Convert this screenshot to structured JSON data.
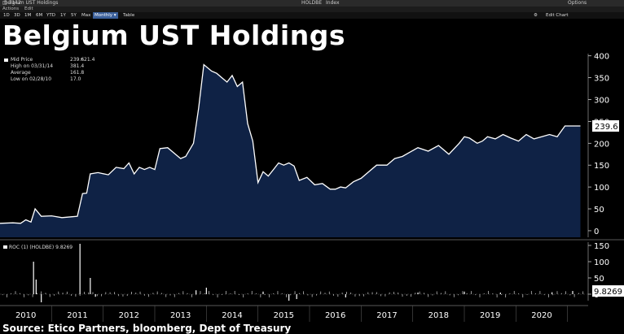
{
  "window": {
    "title": "Belgium UST Holdings",
    "ticker_prefix": "□ 3142",
    "ticker": "HOLDBE",
    "security_type": "Index",
    "options_label": "Options"
  },
  "menu": {
    "actions": "Actions",
    "edit": "Edit"
  },
  "toolbar": {
    "ranges": [
      "1D",
      "3D",
      "1M",
      "6M",
      "YTD",
      "1Y",
      "5Y",
      "Max"
    ],
    "frequency": "Monthly",
    "table_label": "Table",
    "edit_chart": "Edit Chart"
  },
  "headline": "Belgium UST Holdings",
  "legend": {
    "mid_label": "Mid Price",
    "mid_value": "239.6",
    "mid_change": "+21.4",
    "high_label": "High on 03/31/14",
    "high_value": "381.4",
    "avg_label": "Average",
    "avg_value": "161.8",
    "low_label": "Low on 02/28/10",
    "low_value": "17.0"
  },
  "roc_legend": {
    "label": "ROC (1) (HOLDBE)",
    "value": "9.8269"
  },
  "source": "Source: Etico Partners, bloomberg, Dept of Treasury",
  "colors": {
    "background": "#000000",
    "area_fill": "#0f2245",
    "line": "#ffffff",
    "callout_bg": "#ffffff"
  },
  "chart_data": [
    {
      "type": "area",
      "title": "",
      "xlabel": "",
      "ylabel": "",
      "ylim": [
        -15,
        405
      ],
      "yticks": [
        0,
        50,
        100,
        150,
        200,
        250,
        300,
        350,
        400
      ],
      "xlim": [
        2009.5,
        2020.9
      ],
      "xticks": [
        "2010",
        "2011",
        "2012",
        "2013",
        "2014",
        "2015",
        "2016",
        "2017",
        "2018",
        "2019",
        "2020"
      ],
      "last_value_label": "239.6",
      "grid": false,
      "series": [
        {
          "name": "Mid Price",
          "x": [
            2009.5,
            2009.75,
            2009.9,
            2010.0,
            2010.1,
            2010.18,
            2010.3,
            2010.5,
            2010.7,
            2010.9,
            2011.0,
            2011.1,
            2011.18,
            2011.25,
            2011.4,
            2011.6,
            2011.75,
            2011.9,
            2012.0,
            2012.1,
            2012.2,
            2012.3,
            2012.4,
            2012.5,
            2012.6,
            2012.75,
            2012.9,
            2013.0,
            2013.1,
            2013.25,
            2013.35,
            2013.45,
            2013.6,
            2013.7,
            2013.8,
            2013.9,
            2014.0,
            2014.1,
            2014.2,
            2014.3,
            2014.4,
            2014.5,
            2014.6,
            2014.7,
            2014.8,
            2014.9,
            2015.0,
            2015.1,
            2015.2,
            2015.3,
            2015.45,
            2015.6,
            2015.75,
            2015.9,
            2016.0,
            2016.1,
            2016.2,
            2016.35,
            2016.5,
            2016.65,
            2016.8,
            2017.0,
            2017.15,
            2017.3,
            2017.45,
            2017.6,
            2017.8,
            2018.0,
            2018.2,
            2018.4,
            2018.5,
            2018.6,
            2018.75,
            2018.85,
            2018.95,
            2019.1,
            2019.25,
            2019.4,
            2019.55,
            2019.7,
            2019.85,
            2020.0,
            2020.15,
            2020.3,
            2020.45,
            2020.6,
            2020.75
          ],
          "values": [
            17,
            18,
            17,
            25,
            20,
            50,
            33,
            34,
            30,
            32,
            33,
            85,
            86,
            130,
            133,
            128,
            145,
            142,
            155,
            130,
            145,
            140,
            145,
            140,
            188,
            190,
            175,
            165,
            170,
            200,
            280,
            380,
            365,
            360,
            350,
            340,
            355,
            330,
            340,
            245,
            205,
            110,
            135,
            125,
            140,
            155,
            150,
            155,
            148,
            115,
            122,
            105,
            108,
            95,
            95,
            100,
            98,
            112,
            120,
            135,
            150,
            150,
            165,
            170,
            180,
            190,
            182,
            195,
            175,
            200,
            215,
            212,
            200,
            205,
            215,
            210,
            220,
            212,
            205,
            220,
            210,
            215,
            220,
            215,
            239.6,
            239.6,
            239.6
          ]
        }
      ]
    },
    {
      "type": "bar",
      "title": "",
      "xlabel": "",
      "ylabel": "",
      "ylim": [
        -20,
        160
      ],
      "yticks": [
        0,
        50,
        100,
        150
      ],
      "last_value_label": "9.8269",
      "grid": false,
      "series": [
        {
          "name": "ROC (1) (HOLDBE)",
          "x": [
            2010.15,
            2010.2,
            2010.3,
            2011.05,
            2011.25,
            2011.35,
            2013.3,
            2013.5,
            2014.6,
            2015.1,
            2015.25,
            2016.2,
            2017.6,
            2018.5,
            2019.2,
            2020.2,
            2020.6
          ],
          "values": [
            100,
            45,
            -25,
            155,
            50,
            -8,
            12,
            20,
            8,
            -20,
            -15,
            -10,
            5,
            8,
            5,
            6,
            9.8269
          ]
        }
      ]
    }
  ]
}
